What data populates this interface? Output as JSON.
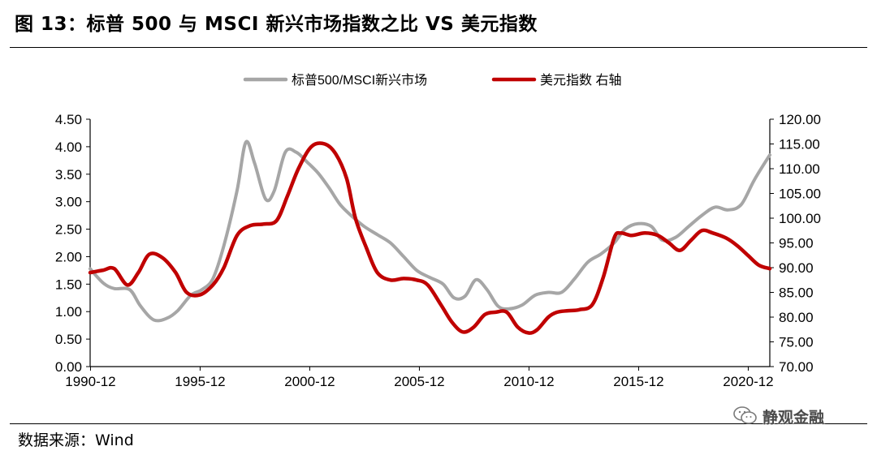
{
  "figure": {
    "title": "图 13：标普 500 与 MSCI 新兴市场指数之比 VS 美元指数",
    "source": "数据来源：Wind",
    "watermark": "静观金融",
    "watermark_icon": "wechat-icon"
  },
  "chart_data": {
    "type": "line",
    "title": "图 13：标普 500 与 MSCI 新兴市场指数之比 VS 美元指数",
    "x_ticks": [
      "1990-12",
      "1995-12",
      "2000-12",
      "2005-12",
      "2010-12",
      "2015-12",
      "2020-12"
    ],
    "x_range": [
      1990.9,
      2021.9
    ],
    "y_left": {
      "range": [
        0,
        4.5
      ],
      "ticks": [
        "0.00",
        "0.50",
        "1.00",
        "1.50",
        "2.00",
        "2.50",
        "3.00",
        "3.50",
        "4.00",
        "4.50"
      ]
    },
    "y_right": {
      "range": [
        70,
        120
      ],
      "ticks": [
        "70.00",
        "75.00",
        "80.00",
        "85.00",
        "90.00",
        "95.00",
        "100.00",
        "105.00",
        "110.00",
        "115.00",
        "120.00"
      ]
    },
    "grid": false,
    "legend_position": "top-center",
    "series": [
      {
        "name": "标普500/MSCI新兴市场",
        "axis": "left",
        "color": "#a6a6a6",
        "x": [
          1990.9,
          1991.5,
          1992.0,
          1992.7,
          1993.2,
          1993.8,
          1994.4,
          1994.9,
          1995.5,
          1996.0,
          1996.5,
          1997.0,
          1997.6,
          1998.0,
          1998.4,
          1998.9,
          1999.3,
          1999.8,
          2000.3,
          2000.8,
          2001.3,
          2001.8,
          2002.3,
          2002.8,
          2003.4,
          2004.0,
          2004.6,
          2005.2,
          2005.8,
          2006.4,
          2007.0,
          2007.5,
          2008.0,
          2008.5,
          2009.0,
          2009.5,
          2010.0,
          2010.6,
          2011.2,
          2011.8,
          2012.4,
          2013.0,
          2013.6,
          2014.2,
          2014.8,
          2015.3,
          2015.9,
          2016.5,
          2017.0,
          2017.6,
          2018.2,
          2018.8,
          2019.4,
          2020.0,
          2020.6,
          2021.2,
          2021.9
        ],
        "values": [
          1.78,
          1.52,
          1.42,
          1.4,
          1.1,
          0.85,
          0.88,
          1.02,
          1.3,
          1.4,
          1.6,
          2.2,
          3.2,
          4.08,
          3.7,
          3.05,
          3.2,
          3.9,
          3.9,
          3.72,
          3.52,
          3.25,
          2.95,
          2.75,
          2.55,
          2.4,
          2.25,
          2.0,
          1.75,
          1.62,
          1.5,
          1.25,
          1.28,
          1.58,
          1.4,
          1.1,
          1.05,
          1.12,
          1.3,
          1.35,
          1.35,
          1.6,
          1.9,
          2.05,
          2.25,
          2.5,
          2.6,
          2.55,
          2.3,
          2.35,
          2.55,
          2.75,
          2.9,
          2.85,
          2.95,
          3.4,
          3.85
        ]
      },
      {
        "name": "美元指数 右轴",
        "axis": "right",
        "color": "#c00000",
        "x": [
          1990.9,
          1991.5,
          1992.0,
          1992.6,
          1993.1,
          1993.6,
          1994.2,
          1994.8,
          1995.3,
          1995.9,
          1996.5,
          1997.0,
          1997.6,
          1998.2,
          1998.8,
          1999.4,
          1999.9,
          2000.4,
          2001.0,
          2001.6,
          2002.1,
          2002.6,
          2003.0,
          2003.5,
          2004.0,
          2004.6,
          2005.2,
          2005.8,
          2006.3,
          2006.9,
          2007.4,
          2007.9,
          2008.4,
          2008.9,
          2009.4,
          2009.9,
          2010.4,
          2010.9,
          2011.3,
          2011.8,
          2012.2,
          2012.7,
          2013.2,
          2013.8,
          2014.3,
          2014.8,
          2015.1,
          2015.6,
          2016.2,
          2016.8,
          2017.3,
          2017.8,
          2018.3,
          2018.8,
          2019.3,
          2019.9,
          2020.4,
          2020.9,
          2021.4,
          2021.9
        ],
        "values": [
          89.0,
          89.5,
          89.8,
          86.5,
          89.0,
          92.7,
          92.0,
          89.0,
          85.0,
          84.5,
          86.5,
          90.0,
          96.5,
          98.5,
          98.8,
          99.5,
          104.5,
          110.0,
          114.5,
          115.0,
          113.0,
          108.0,
          100.0,
          94.0,
          89.0,
          87.5,
          87.8,
          87.5,
          86.5,
          82.5,
          79.0,
          77.0,
          78.0,
          80.5,
          81.0,
          81.0,
          78.0,
          76.8,
          77.5,
          80.0,
          81.0,
          81.3,
          81.5,
          82.5,
          88.0,
          96.0,
          97.0,
          96.5,
          97.0,
          96.5,
          95.0,
          93.5,
          95.5,
          97.5,
          97.0,
          96.0,
          94.5,
          92.5,
          90.5,
          89.8
        ]
      }
    ]
  }
}
